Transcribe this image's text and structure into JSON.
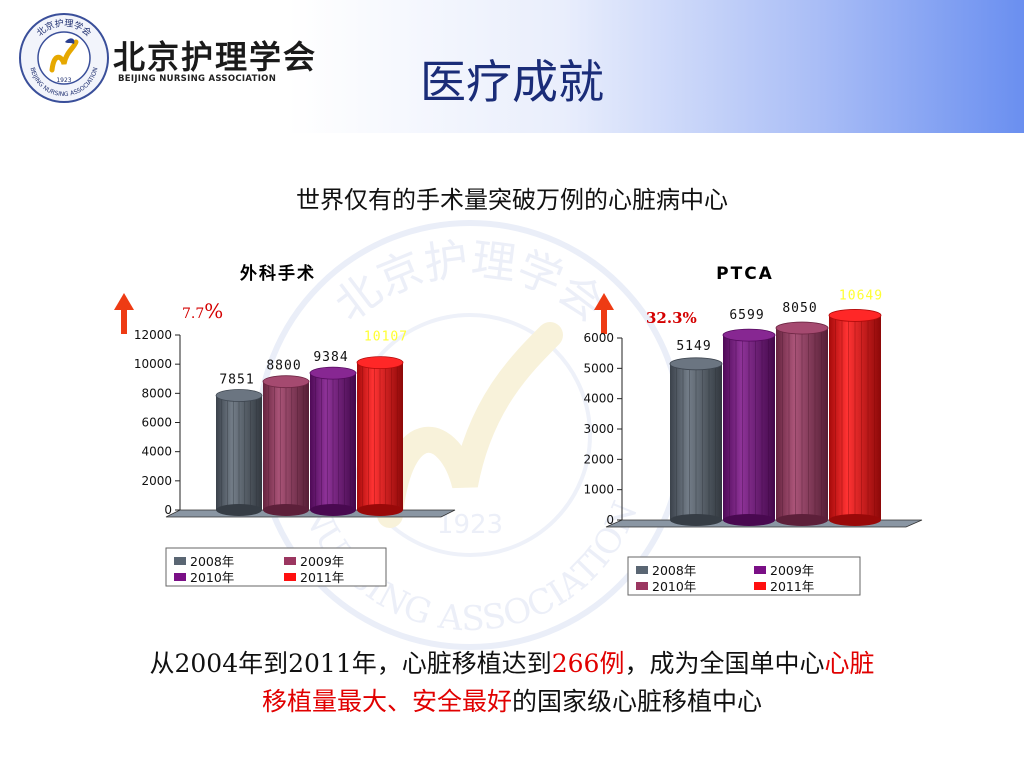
{
  "header": {
    "logo_name": "北京护理学会",
    "logo_eng": "BEIJING NURSING ASSOCIATION",
    "logo_ring_text": "北京护理学会",
    "logo_ring_eng": "BEIJING NURSING ASSOCIATION",
    "logo_year": "1923",
    "title": "医疗成就"
  },
  "subtitle": "世界仅有的手术量突破万例的心脏病中心",
  "watermark": {
    "top_text": "北京护理学会",
    "bottom_text": "NURSING ASSOCIATION",
    "year": "1923"
  },
  "colors": {
    "title": "#1a2c78",
    "gray": "#5a6673",
    "maroon": "#9b3660",
    "purple": "#7a0f86",
    "red": "#ff0f0f",
    "arrow": "#ee3b14",
    "highlight": "#e10000"
  },
  "chart_data": [
    {
      "type": "bar",
      "title": "外科手术",
      "growth": "7.7",
      "growth_sign": "%",
      "categories": [
        "2008年",
        "2009年",
        "2010年",
        "2011年"
      ],
      "values": [
        7851,
        8800,
        9384,
        10107
      ],
      "value_labels": [
        "7851",
        "8800",
        "9384",
        "10107"
      ],
      "bar_colors": [
        "#5a6673",
        "#9b3660",
        "#7a0f86",
        "#ff0f0f"
      ],
      "yticks": [
        "0",
        "2000",
        "4000",
        "6000",
        "8000",
        "10000",
        "12000"
      ],
      "ylim": [
        0,
        12000
      ],
      "legend": [
        "2008年",
        "2009年",
        "2010年",
        "2011年"
      ],
      "legend_colors": [
        "#5a6673",
        "#9b3660",
        "#7a0f86",
        "#ff0f0f"
      ],
      "legend_position": "bottom"
    },
    {
      "type": "bar",
      "title": "PTCA",
      "growth": "32.3%",
      "growth_sign": "",
      "categories": [
        "2008年",
        "2009年",
        "2010年",
        "2011年"
      ],
      "values": [
        5149,
        6599,
        8050,
        10649
      ],
      "value_labels": [
        "5149",
        "6599",
        "8050",
        "10649"
      ],
      "bar_colors": [
        "#5a6673",
        "#7a0f86",
        "#9b3660",
        "#ff0f0f"
      ],
      "yticks": [
        "0",
        "1000",
        "2000",
        "3000",
        "4000",
        "5000",
        "6000"
      ],
      "ylim": [
        0,
        6000
      ],
      "clipped": true,
      "legend": [
        "2008年",
        "2009年",
        "2010年",
        "2011年"
      ],
      "legend_colors": [
        "#5a6673",
        "#7a0f86",
        "#9b3660",
        "#ff0f0f"
      ],
      "legend_position": "bottom"
    }
  ],
  "bottom": {
    "p1": "从2004年到2011年，心脏移植达到",
    "p2": "266例",
    "p3": "，成为全国单中心",
    "p4": "心脏",
    "p5": "移植量最大、安全最好",
    "p6": "的国家级心脏移植中心"
  }
}
